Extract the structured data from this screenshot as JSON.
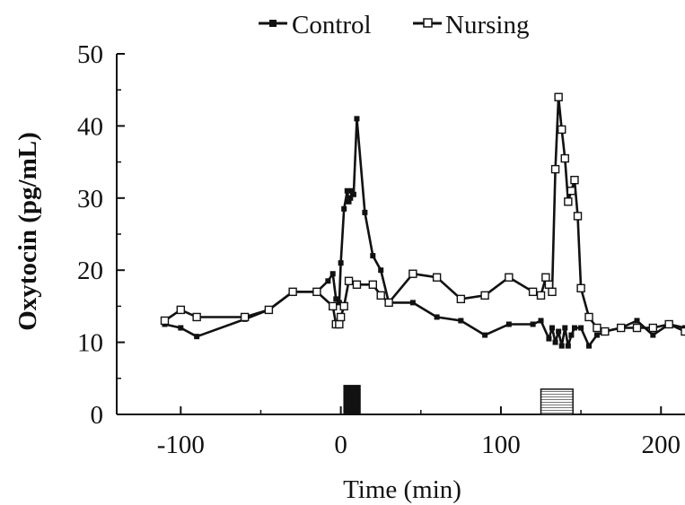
{
  "chart_data": {
    "type": "line",
    "title": "",
    "xlabel": "Time (min)",
    "ylabel": "Oxytocin (pg/mL)",
    "xlim": [
      -140,
      215
    ],
    "ylim": [
      0,
      50
    ],
    "xticks": [
      -100,
      0,
      100,
      200
    ],
    "yticks": [
      0,
      10,
      20,
      30,
      40,
      50
    ],
    "grid": false,
    "legend_position": "top",
    "series": [
      {
        "name": "Control",
        "marker": "filled-square",
        "color": "#111111",
        "x": [
          -110,
          -100,
          -90,
          -60,
          -45,
          -30,
          -15,
          -8,
          -5,
          -3,
          -1,
          0,
          2,
          4,
          5,
          6,
          7,
          8,
          10,
          15,
          20,
          25,
          30,
          45,
          60,
          75,
          90,
          105,
          120,
          125,
          130,
          132,
          134,
          136,
          138,
          140,
          142,
          144,
          146,
          150,
          155,
          160,
          165,
          175,
          185,
          195,
          205,
          215
        ],
        "y": [
          12.5,
          12.0,
          10.8,
          13.2,
          14.5,
          17.0,
          17.0,
          18.5,
          19.5,
          16.0,
          15.5,
          21.0,
          28.5,
          31.0,
          29.5,
          30.0,
          31.0,
          30.5,
          41.0,
          28.0,
          22.0,
          20.0,
          15.5,
          15.5,
          13.5,
          13.0,
          11.0,
          12.5,
          12.5,
          13.0,
          10.5,
          12.0,
          10.0,
          11.5,
          9.5,
          12.0,
          9.5,
          11.0,
          12.0,
          12.0,
          9.5,
          11.0,
          11.5,
          12.0,
          13.0,
          11.0,
          12.5,
          12.0
        ]
      },
      {
        "name": "Nursing",
        "marker": "open-square",
        "color": "#111111",
        "x": [
          -110,
          -100,
          -90,
          -60,
          -45,
          -30,
          -15,
          -5,
          -3,
          -1,
          0,
          2,
          5,
          10,
          20,
          25,
          30,
          45,
          60,
          75,
          90,
          105,
          120,
          125,
          128,
          130,
          132,
          134,
          136,
          138,
          140,
          142,
          144,
          146,
          148,
          150,
          155,
          160,
          165,
          175,
          185,
          195,
          205,
          215
        ],
        "y": [
          13.0,
          14.5,
          13.5,
          13.5,
          14.5,
          17.0,
          17.0,
          15.0,
          12.5,
          12.5,
          13.5,
          15.0,
          18.5,
          18.0,
          18.0,
          16.5,
          15.5,
          19.5,
          19.0,
          16.0,
          16.5,
          19.0,
          17.0,
          16.5,
          19.0,
          18.0,
          17.0,
          34.0,
          44.0,
          39.5,
          35.5,
          29.5,
          31.0,
          32.5,
          27.5,
          17.5,
          13.5,
          12.0,
          11.5,
          12.0,
          12.0,
          12.0,
          12.5,
          11.5
        ]
      }
    ],
    "annotations": [
      {
        "type": "bar-marker",
        "fill": "solid",
        "x_start": 2,
        "x_end": 12,
        "height": 4
      },
      {
        "type": "bar-marker",
        "fill": "hatched",
        "x_start": 125,
        "x_end": 145,
        "height": 3.5
      }
    ]
  }
}
